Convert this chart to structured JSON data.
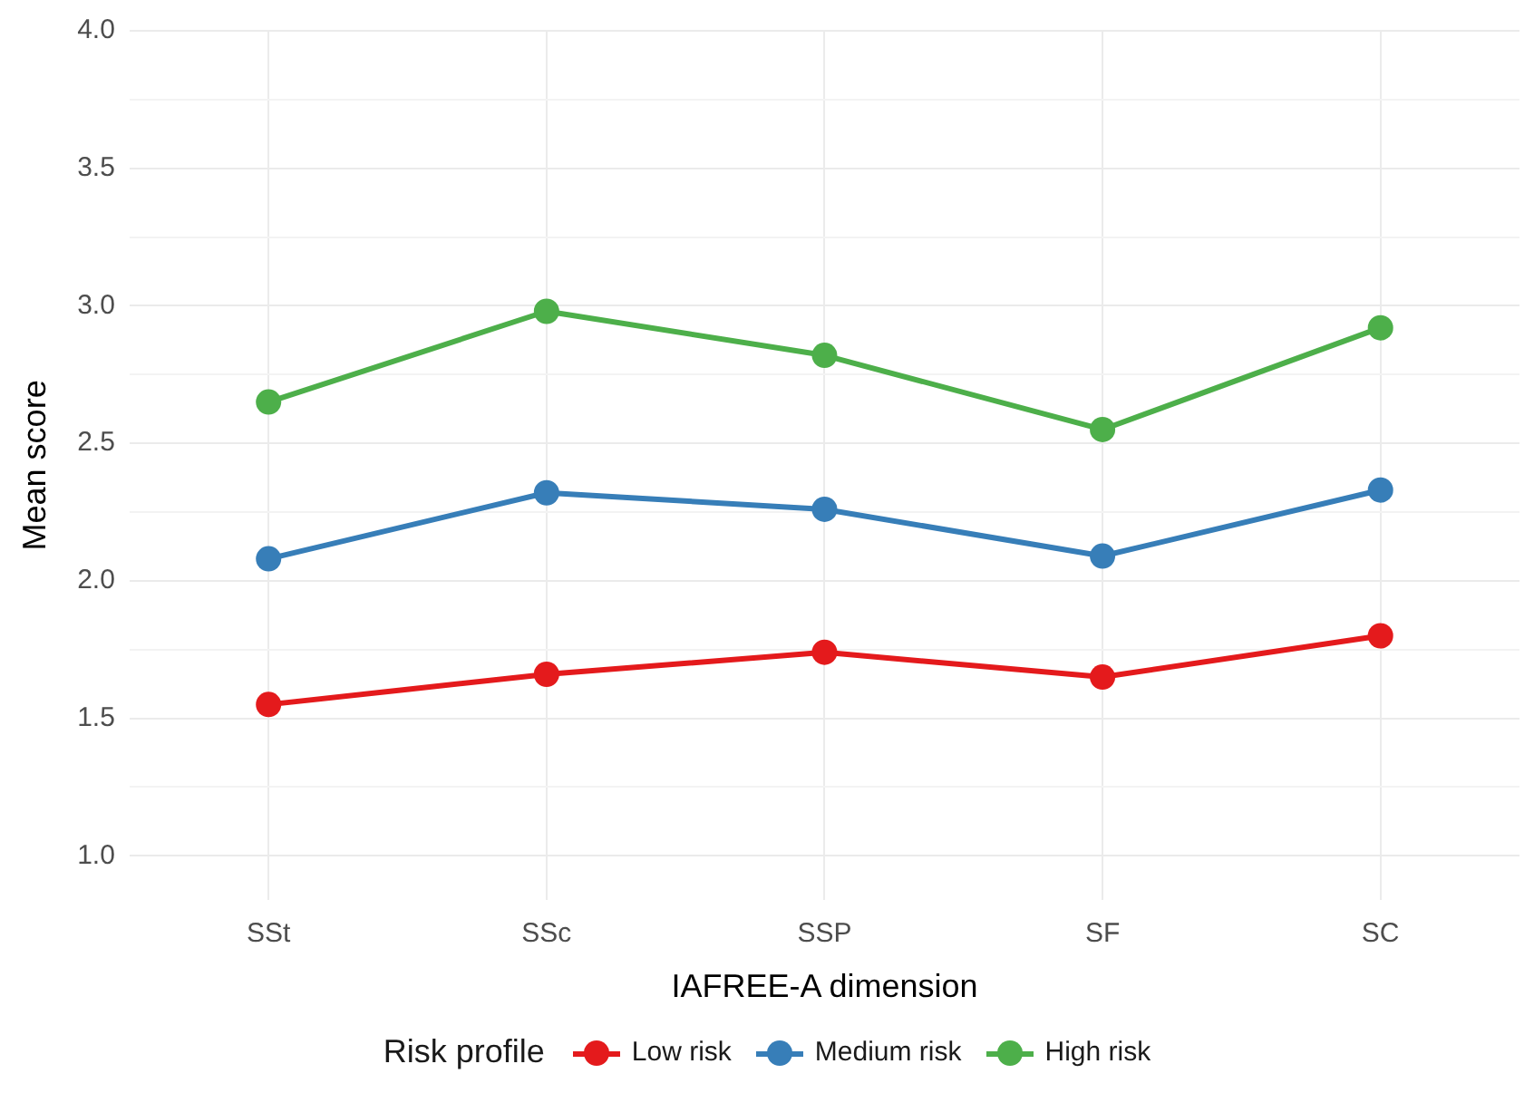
{
  "chart_data": {
    "type": "line",
    "xlabel": "IAFREE-A dimension",
    "ylabel": "Mean score",
    "legend_title": "Risk profile",
    "categories": [
      "SSt",
      "SSc",
      "SSP",
      "SF",
      "SC"
    ],
    "series": [
      {
        "name": "Low risk",
        "color": "#e41a1c",
        "values": [
          1.55,
          1.66,
          1.74,
          1.65,
          1.8
        ]
      },
      {
        "name": "Medium risk",
        "color": "#377eb8",
        "values": [
          2.08,
          2.32,
          2.26,
          2.09,
          2.33
        ]
      },
      {
        "name": "High risk",
        "color": "#4daf4a",
        "values": [
          2.65,
          2.98,
          2.82,
          2.55,
          2.92
        ]
      }
    ],
    "ylim": [
      0.84,
      4.0
    ],
    "yticks": [
      {
        "value": 1,
        "label": "1.0"
      },
      {
        "value": 1.25,
        "label": null
      },
      1.5,
      {
        "value": 1.75,
        "label": null
      },
      {
        "value": 2,
        "label": "2.0"
      },
      {
        "value": 2.25,
        "label": null
      },
      2.5,
      {
        "value": 2.75,
        "label": null
      },
      {
        "value": 3,
        "label": "3.0"
      },
      {
        "value": 3.25,
        "label": null
      },
      3.5,
      {
        "value": 3.75,
        "label": null
      },
      {
        "value": 4,
        "label": "4.0"
      }
    ],
    "grid": true,
    "legend": "bottom",
    "marker": "circle",
    "line_style": "solid"
  }
}
